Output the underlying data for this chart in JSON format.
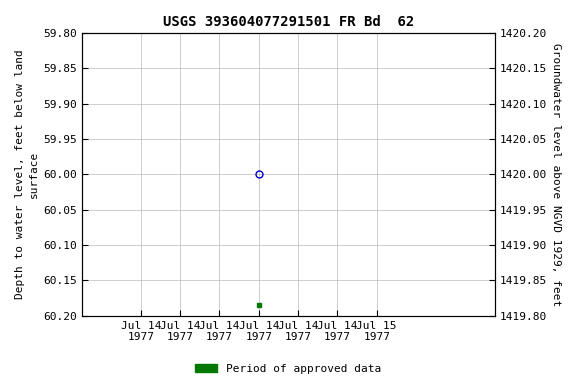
{
  "title": "USGS 393604077291501 FR Bd  62",
  "ylabel_left": "Depth to water level, feet below land\nsurface",
  "ylabel_right": "Groundwater level above NGVD 1929, feet",
  "ylim_left_top": 59.8,
  "ylim_left_bottom": 60.2,
  "ylim_right_top": 1420.2,
  "ylim_right_bottom": 1419.8,
  "left_yticks": [
    59.8,
    59.85,
    59.9,
    59.95,
    60.0,
    60.05,
    60.1,
    60.15,
    60.2
  ],
  "right_yticks": [
    1420.2,
    1420.15,
    1420.1,
    1420.05,
    1420.0,
    1419.95,
    1419.9,
    1419.85,
    1419.8
  ],
  "blue_circle_x_hours": 12,
  "blue_circle_value": 60.0,
  "green_square_x_hours": 12,
  "green_square_value": 60.185,
  "blue_circle_color": "#0000cc",
  "green_square_color": "#007700",
  "legend_label": "Period of approved data",
  "legend_color": "#007700",
  "grid_color": "#bbbbbb",
  "background_color": "#ffffff",
  "title_fontsize": 10,
  "axis_label_fontsize": 8,
  "tick_fontsize": 8,
  "xaxis_start_hours": 0,
  "xaxis_end_hours": 30,
  "xtick_hours": [
    0,
    4,
    8,
    12,
    16,
    20,
    24
  ],
  "xtick_labels": [
    "Jul 14\n1977",
    "Jul 14\n1977",
    "Jul 14\n1977",
    "Jul 14\n1977",
    "Jul 14\n1977",
    "Jul 14\n1977",
    "Jul 15\n1977"
  ]
}
